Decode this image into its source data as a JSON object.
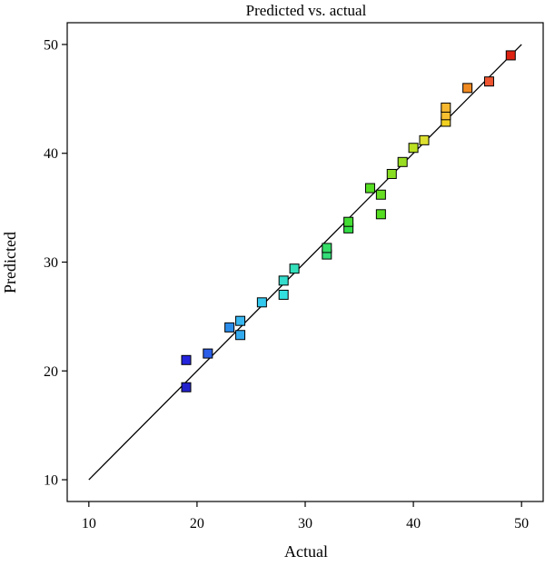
{
  "chart_data": {
    "type": "scatter",
    "title": "Predicted vs. actual",
    "xlabel": "Actual",
    "ylabel": "Predicted",
    "xlim": [
      8,
      52
    ],
    "ylim": [
      8,
      52
    ],
    "xticks": [
      "10",
      "20",
      "30",
      "40",
      "50"
    ],
    "yticks": [
      "10",
      "20",
      "30",
      "40",
      "50"
    ],
    "grid": false,
    "reference_line": {
      "from": [
        10,
        10
      ],
      "to": [
        50,
        50
      ],
      "color": "#000000"
    },
    "points": [
      {
        "x": 19,
        "y": 18.5,
        "color": "#2222cc"
      },
      {
        "x": 19,
        "y": 21.0,
        "color": "#2424dd"
      },
      {
        "x": 21,
        "y": 21.6,
        "color": "#2a5ee8"
      },
      {
        "x": 23,
        "y": 24.0,
        "color": "#2a8cea"
      },
      {
        "x": 24,
        "y": 23.3,
        "color": "#33aaee"
      },
      {
        "x": 24,
        "y": 24.6,
        "color": "#38b6f0"
      },
      {
        "x": 26,
        "y": 26.3,
        "color": "#33c8ee"
      },
      {
        "x": 28,
        "y": 27.0,
        "color": "#33e0e0"
      },
      {
        "x": 28,
        "y": 28.3,
        "color": "#33dccc"
      },
      {
        "x": 29,
        "y": 29.4,
        "color": "#33e0bb"
      },
      {
        "x": 32,
        "y": 30.7,
        "color": "#33dd77"
      },
      {
        "x": 32,
        "y": 31.3,
        "color": "#33dd66"
      },
      {
        "x": 34,
        "y": 33.1,
        "color": "#33dd44"
      },
      {
        "x": 34,
        "y": 33.7,
        "color": "#44dd33"
      },
      {
        "x": 36,
        "y": 36.8,
        "color": "#55dd22"
      },
      {
        "x": 37,
        "y": 34.4,
        "color": "#55dd22"
      },
      {
        "x": 37,
        "y": 36.2,
        "color": "#66dd22"
      },
      {
        "x": 38,
        "y": 38.1,
        "color": "#88dd22"
      },
      {
        "x": 39,
        "y": 39.2,
        "color": "#99dd22"
      },
      {
        "x": 40,
        "y": 40.5,
        "color": "#bbe022"
      },
      {
        "x": 41,
        "y": 41.2,
        "color": "#dde030"
      },
      {
        "x": 43,
        "y": 42.9,
        "color": "#f2d020"
      },
      {
        "x": 43,
        "y": 43.5,
        "color": "#f8c030"
      },
      {
        "x": 43,
        "y": 44.2,
        "color": "#f8b830"
      },
      {
        "x": 45,
        "y": 46.0,
        "color": "#f08a20"
      },
      {
        "x": 47,
        "y": 46.6,
        "color": "#ee5530"
      },
      {
        "x": 49,
        "y": 49.0,
        "color": "#dd2211"
      }
    ]
  }
}
